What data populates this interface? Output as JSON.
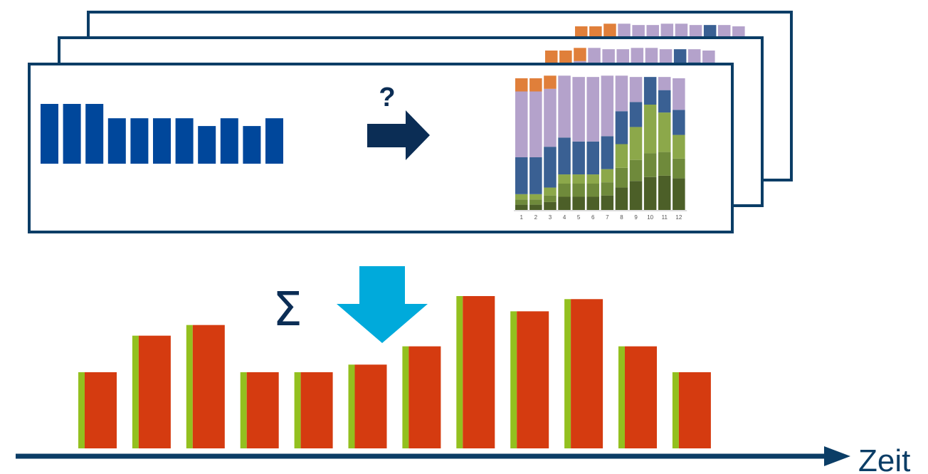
{
  "colors": {
    "frame": "#0b3d66",
    "input_bar": "#00479b",
    "arrow_right": "#0b2d55",
    "arrow_down": "#00aadb",
    "sigma": "#0b2d55",
    "time_axis": "#0b3d66",
    "result_bar": "#d53b10",
    "result_accent": "#93c01f",
    "stack_orange": "#e07f3a",
    "stack_lavender": "#b4a2cb",
    "stack_blue": "#3a6093",
    "stack_lightgreen": "#8ca84a",
    "stack_midgreen": "#6f8a3b",
    "stack_darkgreen": "#4c5f28"
  },
  "labels": {
    "question_mark": "?",
    "sigma": "Σ",
    "time_axis_label": "Zeit"
  },
  "icons": {
    "right_arrow": "right-arrow-icon",
    "down_arrow": "down-arrow-icon"
  },
  "input_profile": [
    1,
    1,
    1,
    0.76,
    0.76,
    0.76,
    0.76,
    0.63,
    0.76,
    0.63,
    0.76
  ],
  "stacked_chart": {
    "x_labels": [
      "1",
      "2",
      "3",
      "4",
      "5",
      "6",
      "7",
      "8",
      "9",
      "10",
      "11",
      "12"
    ],
    "layers": [
      "darkgreen",
      "midgreen",
      "lightgreen",
      "blue",
      "lavender",
      "orange"
    ],
    "columns": [
      [
        0.04,
        0.04,
        0.04,
        0.28,
        0.5,
        0.1
      ],
      [
        0.04,
        0.04,
        0.04,
        0.28,
        0.5,
        0.1
      ],
      [
        0.06,
        0.05,
        0.06,
        0.31,
        0.44,
        0.1
      ],
      [
        0.1,
        0.1,
        0.07,
        0.28,
        0.47,
        0.0
      ],
      [
        0.1,
        0.1,
        0.07,
        0.25,
        0.49,
        0.0
      ],
      [
        0.1,
        0.1,
        0.07,
        0.25,
        0.49,
        0.0
      ],
      [
        0.11,
        0.1,
        0.1,
        0.25,
        0.46,
        0.0
      ],
      [
        0.17,
        0.15,
        0.18,
        0.25,
        0.27,
        0.0
      ],
      [
        0.22,
        0.16,
        0.25,
        0.19,
        0.19,
        0.0
      ],
      [
        0.25,
        0.18,
        0.37,
        0.21,
        0.0,
        0.0
      ],
      [
        0.26,
        0.18,
        0.3,
        0.17,
        0.1,
        0.0
      ],
      [
        0.24,
        0.15,
        0.18,
        0.19,
        0.24,
        0.0
      ]
    ]
  },
  "result_values": [
    0.5,
    0.74,
    0.81,
    0.5,
    0.5,
    0.55,
    0.67,
    1.0,
    0.9,
    0.98,
    0.67,
    0.5
  ]
}
